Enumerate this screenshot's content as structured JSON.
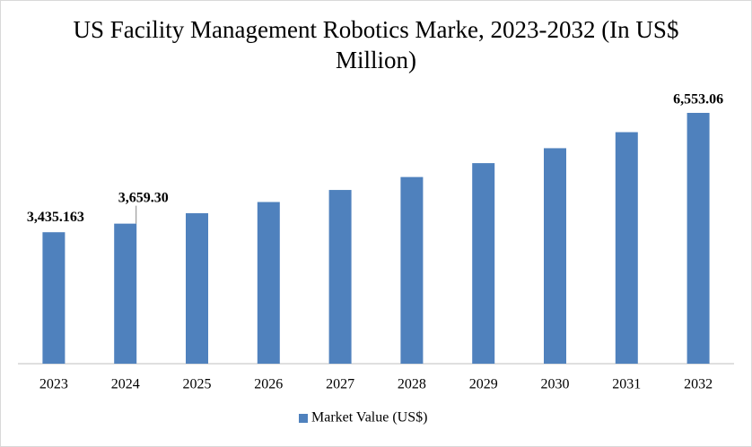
{
  "chart_data": {
    "type": "bar",
    "title": "US Facility Management Robotics Marke, 2023-2032 (In US$ Million)",
    "categories": [
      "2023",
      "2024",
      "2025",
      "2026",
      "2027",
      "2028",
      "2029",
      "2030",
      "2031",
      "2032"
    ],
    "series": [
      {
        "name": "Market Value (US$)",
        "color": "#4f81bd",
        "values": [
          3435.163,
          3659.3,
          3931,
          4224,
          4539,
          4877,
          5240,
          5630,
          6049,
          6553.06
        ],
        "value_labels": [
          "3,435.163",
          "3,659.30",
          null,
          null,
          null,
          null,
          null,
          null,
          null,
          "6,553.06"
        ]
      }
    ],
    "legend": "bottom"
  }
}
